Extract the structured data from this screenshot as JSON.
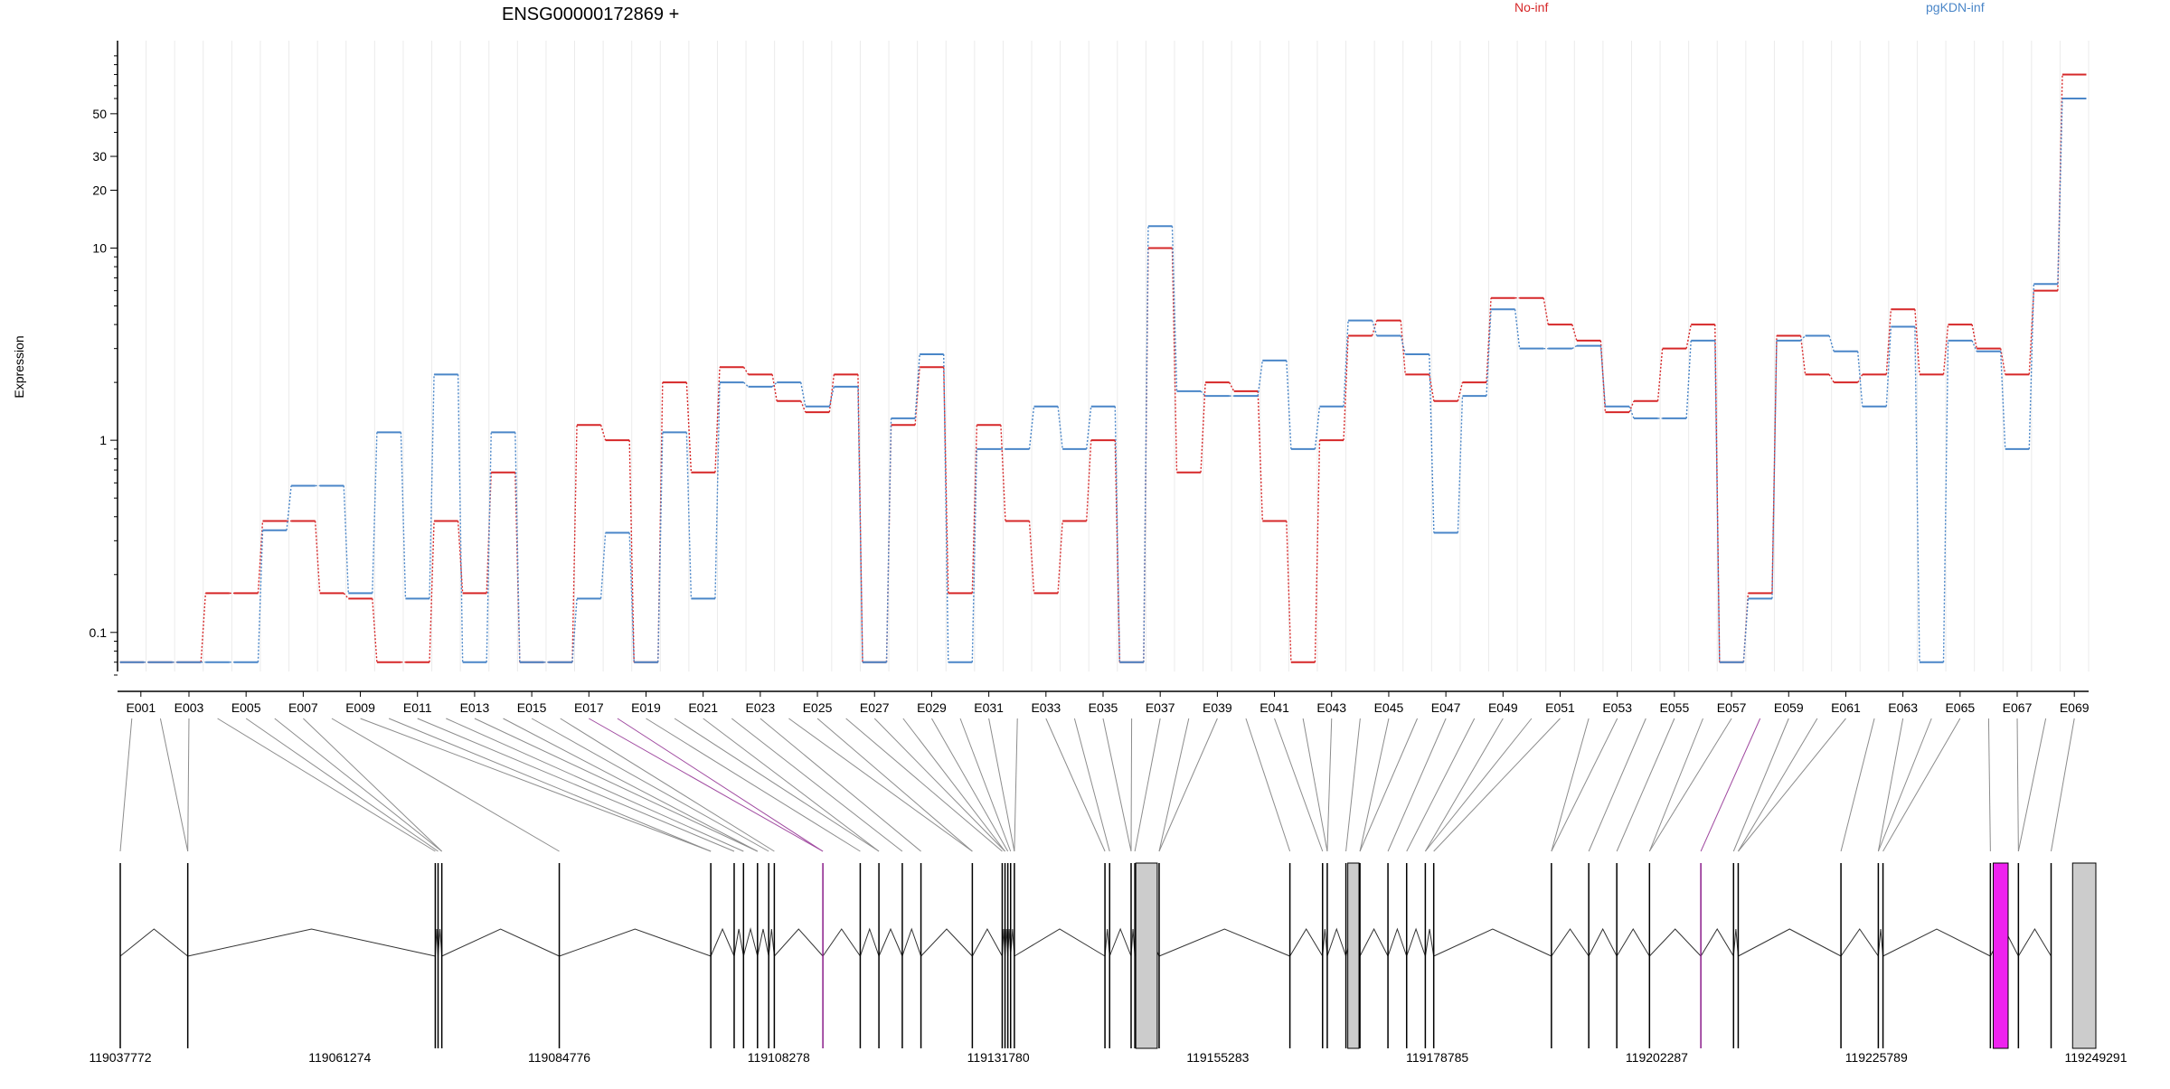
{
  "chart_data": {
    "type": "line",
    "title": "ENSG00000172869 +",
    "ylabel": "Expression",
    "y_scale": "log",
    "y_ticks": [
      "0.1",
      "1",
      "10",
      "20",
      "30",
      "50"
    ],
    "grid": true,
    "legend": "top-right",
    "series": [
      {
        "name": "No-inf",
        "color": "#d62728",
        "values": [
          0.07,
          0.07,
          0.07,
          0.16,
          0.16,
          0.38,
          0.38,
          0.16,
          0.15,
          0.07,
          0.07,
          0.38,
          0.16,
          0.68,
          0.07,
          0.07,
          1.2,
          1.0,
          0.07,
          2.0,
          0.68,
          2.4,
          2.2,
          1.6,
          1.4,
          2.2,
          0.07,
          1.2,
          2.4,
          0.16,
          1.2,
          0.38,
          0.16,
          0.38,
          1.0,
          0.07,
          10.0,
          0.68,
          2.0,
          1.8,
          0.38,
          0.07,
          1.0,
          3.5,
          4.2,
          2.2,
          1.6,
          2.0,
          5.5,
          5.5,
          4.0,
          3.3,
          1.4,
          1.6,
          3.0,
          4.0,
          0.07,
          0.16,
          3.5,
          2.2,
          2.0,
          2.2,
          4.8,
          2.2,
          4.0,
          3.0,
          2.2,
          6.0,
          80.0
        ]
      },
      {
        "name": "pgKDN-inf",
        "color": "#4a86c8",
        "values": [
          0.07,
          0.07,
          0.07,
          0.07,
          0.07,
          0.34,
          0.58,
          0.58,
          0.16,
          1.1,
          0.15,
          2.2,
          0.07,
          1.1,
          0.07,
          0.07,
          0.15,
          0.33,
          0.07,
          1.1,
          0.15,
          2.0,
          1.9,
          2.0,
          1.5,
          1.9,
          0.07,
          1.3,
          2.8,
          0.07,
          0.9,
          0.9,
          1.5,
          0.9,
          1.5,
          0.07,
          13.0,
          1.8,
          1.7,
          1.7,
          2.6,
          0.9,
          1.5,
          4.2,
          3.5,
          2.8,
          0.33,
          1.7,
          4.8,
          3.0,
          3.0,
          3.1,
          1.5,
          1.3,
          1.3,
          3.3,
          0.07,
          0.15,
          3.3,
          3.5,
          2.9,
          1.5,
          3.9,
          0.07,
          3.3,
          2.9,
          0.9,
          6.5,
          60.0
        ]
      }
    ],
    "exon_labels": [
      "E001",
      "E003",
      "E005",
      "E007",
      "E009",
      "E011",
      "E013",
      "E015",
      "E017",
      "E019",
      "E021",
      "E023",
      "E025",
      "E027",
      "E029",
      "E031",
      "E033",
      "E035",
      "E037",
      "E039",
      "E041",
      "E043",
      "E045",
      "E047",
      "E049",
      "E051",
      "E053",
      "E055",
      "E057",
      "E059",
      "E061",
      "E063",
      "E065",
      "E067",
      "E069"
    ],
    "genomic_range": [
      119037772,
      119249291
    ],
    "genomic_ticks": [
      "119037772",
      "119061274",
      "119084776",
      "119108278",
      "119131780",
      "119155283",
      "119178785",
      "119202287",
      "119225789",
      "119249291"
    ],
    "highlight_exons": [
      12,
      41,
      64
    ],
    "highlight_color": "#ee22ee",
    "exon_fill": "#cccccc",
    "exon_positions": [
      119037772,
      119045000,
      119071500,
      119071800,
      119072200,
      119084776,
      119101000,
      119103500,
      119104500,
      119106000,
      119107200,
      119107800,
      119113000,
      119117000,
      119119000,
      119121500,
      119123500,
      119129000,
      119132200,
      119132500,
      119132800,
      119133100,
      119133500,
      119143200,
      119143700,
      119146000,
      119146400,
      119149000,
      119163000,
      119166500,
      119167000,
      119169000,
      119170500,
      119173500,
      119175500,
      119177500,
      119178400,
      119191000,
      119195000,
      119198000,
      119201500,
      119207000,
      119210500,
      119211000,
      119222000,
      119226000,
      119226500,
      119238000,
      119241000,
      119244500
    ]
  }
}
